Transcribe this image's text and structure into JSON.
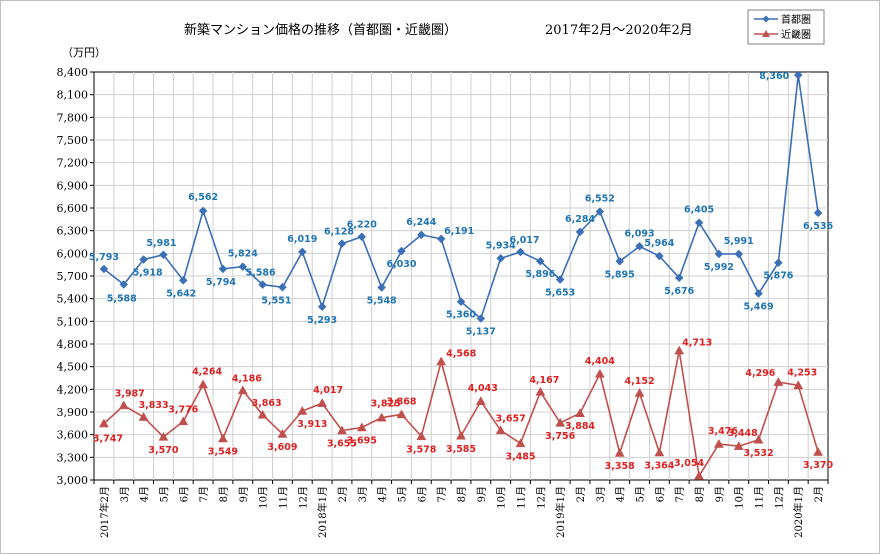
{
  "chart_data": {
    "type": "line",
    "title": "新築マンション価格の推移（首都圏・近畿圏）",
    "period": "2017年2月～2020年2月",
    "ylabel": "（万円）",
    "ylim": [
      3000,
      8400
    ],
    "yticks": [
      "3,000",
      "3,300",
      "3,600",
      "3,900",
      "4,200",
      "4,500",
      "4,800",
      "5,100",
      "5,400",
      "5,700",
      "6,000",
      "6,300",
      "6,600",
      "6,900",
      "7,200",
      "7,500",
      "7,800",
      "8,100",
      "8,400"
    ],
    "ytick_values": [
      3000,
      3300,
      3600,
      3900,
      4200,
      4500,
      4800,
      5100,
      5400,
      5700,
      6000,
      6300,
      6600,
      6900,
      7200,
      7500,
      7800,
      8100,
      8400
    ],
    "categories": [
      "2017年2月",
      "3月",
      "4月",
      "5月",
      "6月",
      "7月",
      "8月",
      "9月",
      "10月",
      "11月",
      "12月",
      "2018年1月",
      "2月",
      "3月",
      "4月",
      "5月",
      "6月",
      "7月",
      "8月",
      "9月",
      "10月",
      "11月",
      "12月",
      "2019年1月",
      "2月",
      "3月",
      "4月",
      "5月",
      "6月",
      "7月",
      "8月",
      "9月",
      "10月",
      "11月",
      "12月",
      "2020年1月",
      "2月"
    ],
    "grid": true,
    "legend_position": "top-right",
    "series": [
      {
        "name": "首都圏",
        "color": "#3b6fb6",
        "label_color": "#1f74b4",
        "marker": "diamond",
        "values": [
          5793,
          5588,
          5918,
          5981,
          5642,
          6562,
          5794,
          5824,
          5586,
          5551,
          6019,
          5293,
          6128,
          6220,
          5548,
          6030,
          6244,
          6191,
          5360,
          5137,
          5934,
          6017,
          5896,
          5653,
          6284,
          6552,
          5895,
          6093,
          5964,
          5676,
          6405,
          5992,
          5991,
          5469,
          5876,
          8360,
          6536
        ],
        "labels": [
          "5,793",
          "5,588",
          "5,918",
          "5,981",
          "5,642",
          "6,562",
          "5,794",
          "5,824",
          "5,586",
          "5,551",
          "6,019",
          "5,293",
          "6,128",
          "6,220",
          "5,548",
          "6,030",
          "6,244",
          "6,191",
          "5,360",
          "5,137",
          "5,934",
          "6,017",
          "5,896",
          "5,653",
          "6,284",
          "6,552",
          "5,895",
          "6,093",
          "5,964",
          "5,676",
          "6,405",
          "5,992",
          "5,991",
          "5,469",
          "5,876",
          "8,360",
          "6,536"
        ]
      },
      {
        "name": "近畿圏",
        "color": "#c0504d",
        "label_color": "#e02020",
        "marker": "triangle",
        "values": [
          3747,
          3987,
          3833,
          3570,
          3776,
          4264,
          3549,
          4186,
          3863,
          3609,
          3913,
          4017,
          3655,
          3695,
          3825,
          3868,
          3578,
          4568,
          3585,
          4043,
          3657,
          3485,
          4167,
          3756,
          3884,
          4404,
          3358,
          4152,
          3364,
          4713,
          3054,
          3476,
          3448,
          3532,
          4296,
          4253,
          3370
        ],
        "labels": [
          "3,747",
          "3,987",
          "3,833",
          "3,570",
          "3,776",
          "4,264",
          "3,549",
          "4,186",
          "3,863",
          "3,609",
          "3,913",
          "4,017",
          "3,655",
          "3,695",
          "3,825",
          "3,868",
          "3,578",
          "4,568",
          "3,585",
          "4,043",
          "3,657",
          "3,485",
          "4,167",
          "3,756",
          "3,884",
          "4,404",
          "3,358",
          "4,152",
          "3,364",
          "4,713",
          "3,054",
          "3,476",
          "3,448",
          "3,532",
          "4,296",
          "4,253",
          "3,370"
        ]
      }
    ]
  }
}
